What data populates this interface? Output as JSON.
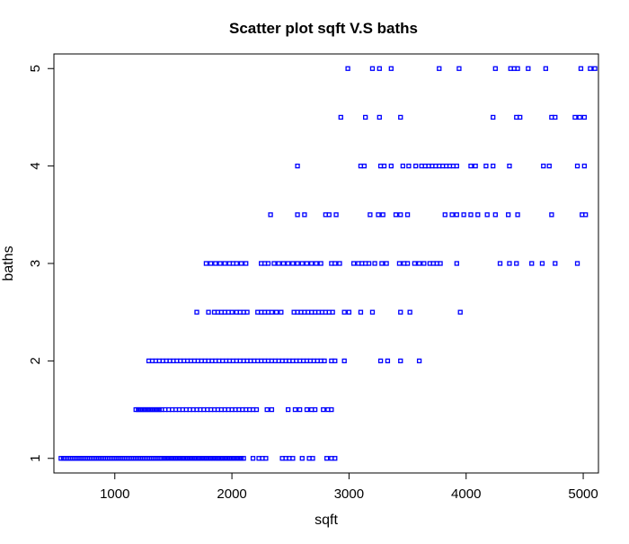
{
  "chart_data": {
    "type": "scatter",
    "title": "Scatter plot sqft V.S baths",
    "xlabel": "sqft",
    "ylabel": "baths",
    "xlim": [
      480,
      5130
    ],
    "ylim": [
      0.85,
      5.15
    ],
    "xticks": [
      1000,
      2000,
      3000,
      4000,
      5000
    ],
    "yticks": [
      1,
      2,
      3,
      4,
      5
    ],
    "grid": false,
    "marker_color": "#0000ff",
    "series": [
      {
        "points": [
          {
            "y": 1,
            "x": [
              540,
              560,
              575,
              590,
              605,
              620,
              635,
              650,
              665,
              680,
              695,
              710,
              725,
              740,
              755,
              770,
              785,
              800,
              815,
              830,
              845,
              860,
              875,
              890,
              905,
              920,
              935,
              950,
              965,
              980,
              995,
              1010,
              1025,
              1040,
              1055,
              1070,
              1085,
              1100,
              1115,
              1130,
              1145,
              1160,
              1175,
              1190,
              1205,
              1220,
              1235,
              1250,
              1265,
              1280,
              1295,
              1310,
              1325,
              1340,
              1355,
              1370,
              1385,
              1400,
              1420,
              1440,
              1460,
              1480,
              1500,
              1520,
              1540,
              1560,
              1580,
              1600,
              1620,
              1640,
              1660,
              1680,
              1700,
              1720,
              1740,
              1760,
              1780,
              1800,
              1820,
              1840,
              1860,
              1880,
              1900,
              1920,
              1940,
              1960,
              1980,
              2000,
              2020,
              2040,
              2060,
              2080,
              2100,
              2180,
              2230,
              2260,
              2290,
              2430,
              2460,
              2490,
              2520,
              2600,
              2660,
              2690,
              2810,
              2850,
              2880
            ]
          },
          {
            "y": 1.5,
            "x": [
              1180,
              1200,
              1220,
              1240,
              1260,
              1280,
              1300,
              1320,
              1340,
              1360,
              1380,
              1400,
              1430,
              1460,
              1490,
              1520,
              1550,
              1580,
              1610,
              1640,
              1670,
              1700,
              1730,
              1760,
              1790,
              1820,
              1850,
              1880,
              1910,
              1940,
              1970,
              2000,
              2030,
              2060,
              2090,
              2120,
              2150,
              2180,
              2210,
              2300,
              2340,
              2480,
              2540,
              2580,
              2640,
              2680,
              2710,
              2780,
              2820,
              2850
            ]
          },
          {
            "y": 2,
            "x": [
              1290,
              1320,
              1350,
              1380,
              1410,
              1440,
              1470,
              1500,
              1530,
              1560,
              1590,
              1620,
              1650,
              1680,
              1710,
              1740,
              1770,
              1800,
              1830,
              1860,
              1890,
              1920,
              1950,
              1980,
              2010,
              2040,
              2070,
              2100,
              2130,
              2160,
              2190,
              2220,
              2250,
              2280,
              2310,
              2340,
              2370,
              2400,
              2430,
              2460,
              2490,
              2520,
              2550,
              2580,
              2610,
              2640,
              2670,
              2700,
              2730,
              2760,
              2790,
              2850,
              2880,
              2960,
              3270,
              3330,
              3440,
              3600
            ]
          },
          {
            "y": 2.5,
            "x": [
              1700,
              1800,
              1850,
              1880,
              1910,
              1940,
              1970,
              2000,
              2040,
              2070,
              2100,
              2130,
              2220,
              2250,
              2280,
              2310,
              2340,
              2380,
              2420,
              2530,
              2560,
              2590,
              2620,
              2650,
              2680,
              2710,
              2740,
              2770,
              2800,
              2830,
              2860,
              2960,
              3000,
              3100,
              3200,
              3440,
              3520,
              3950
            ]
          },
          {
            "y": 3,
            "x": [
              1780,
              1820,
              1860,
              1900,
              1940,
              1980,
              2010,
              2040,
              2080,
              2120,
              2250,
              2280,
              2310,
              2360,
              2400,
              2440,
              2480,
              2520,
              2560,
              2600,
              2640,
              2680,
              2720,
              2760,
              2850,
              2880,
              2920,
              3040,
              3080,
              3110,
              3140,
              3170,
              3220,
              3280,
              3320,
              3430,
              3470,
              3500,
              3560,
              3600,
              3640,
              3690,
              3720,
              3750,
              3780,
              3920,
              4290,
              4370,
              4430,
              4560,
              4650,
              4760,
              4950
            ]
          },
          {
            "y": 3.5,
            "x": [
              2330,
              2560,
              2620,
              2800,
              2830,
              2890,
              3180,
              3250,
              3290,
              3400,
              3440,
              3500,
              3820,
              3880,
              3920,
              3980,
              4040,
              4100,
              4180,
              4250,
              4360,
              4440,
              4730,
              4990,
              5020
            ]
          },
          {
            "y": 4,
            "x": [
              2560,
              3100,
              3130,
              3270,
              3300,
              3360,
              3460,
              3510,
              3570,
              3620,
              3650,
              3680,
              3710,
              3740,
              3770,
              3800,
              3830,
              3860,
              3890,
              3920,
              4040,
              4080,
              4170,
              4230,
              4370,
              4660,
              4710,
              4950,
              5010
            ]
          },
          {
            "y": 4.5,
            "x": [
              2930,
              3140,
              3260,
              3440,
              4230,
              4430,
              4460,
              4730,
              4760,
              4930,
              4970,
              5010
            ]
          },
          {
            "y": 5,
            "x": [
              2990,
              3200,
              3260,
              3360,
              3770,
              3940,
              4250,
              4380,
              4410,
              4440,
              4530,
              4680,
              4980,
              5060,
              5100
            ]
          }
        ]
      }
    ]
  }
}
